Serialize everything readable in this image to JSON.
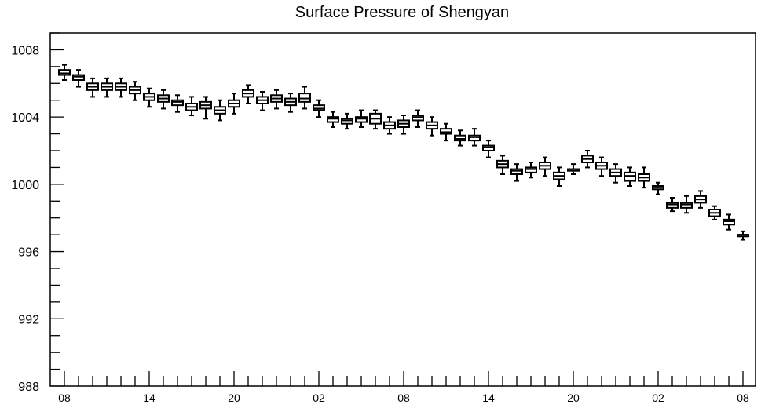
{
  "chart_data": {
    "type": "box",
    "title": "Surface Pressure of Shengyan",
    "xlabel": "",
    "ylabel": "",
    "ylim": [
      988,
      1009
    ],
    "yticks": [
      988,
      992,
      996,
      1000,
      1004,
      1008
    ],
    "ytick_labels": [
      "988",
      "992",
      "996",
      "1000",
      "1004",
      "1008"
    ],
    "x_hours_from_start": [
      0,
      6,
      12,
      18,
      24,
      30,
      36,
      42,
      48
    ],
    "xtick_labels": [
      "08",
      "14",
      "20",
      "02",
      "08",
      "14",
      "20",
      "02",
      "08"
    ],
    "grid": false,
    "legend": "none",
    "box_color": "#000000",
    "series": [
      {
        "box_low": [
          1006.5,
          1006.2,
          1005.6,
          1005.6,
          1005.6,
          1005.4,
          1005.0,
          1004.9,
          1004.7,
          1004.4,
          1004.5,
          1004.2,
          1004.6,
          1005.2,
          1004.8,
          1004.9,
          1004.7,
          1004.9,
          1004.4,
          1003.7,
          1003.6,
          1003.7,
          1003.6,
          1003.3,
          1003.4,
          1003.8,
          1003.3,
          1003.0,
          1002.6,
          1002.6,
          1002.0,
          1001.0,
          1000.6,
          1000.7,
          1000.9,
          1000.3,
          1000.8,
          1001.3,
          1000.9,
          1000.5,
          1000.2,
          1000.2,
          999.7,
          998.6,
          998.6,
          998.9,
          998.1,
          997.6,
          996.9
        ],
        "box_high": [
          1006.8,
          1006.5,
          1006.0,
          1006.0,
          1006.0,
          1005.8,
          1005.4,
          1005.3,
          1005.0,
          1004.8,
          1004.9,
          1004.6,
          1005.0,
          1005.6,
          1005.2,
          1005.3,
          1005.1,
          1005.4,
          1004.7,
          1004.0,
          1003.9,
          1004.0,
          1004.2,
          1003.7,
          1003.8,
          1004.1,
          1003.7,
          1003.3,
          1002.9,
          1002.9,
          1002.3,
          1001.4,
          1000.9,
          1001.0,
          1001.3,
          1000.7,
          1000.9,
          1001.7,
          1001.3,
          1000.9,
          1000.7,
          1000.6,
          999.9,
          998.9,
          998.9,
          999.3,
          998.5,
          997.9,
          997.0
        ],
        "median": [
          1006.6,
          1006.4,
          1005.8,
          1005.8,
          1005.8,
          1005.6,
          1005.2,
          1005.1,
          1004.9,
          1004.6,
          1004.7,
          1004.4,
          1004.8,
          1005.4,
          1005.0,
          1005.1,
          1004.9,
          1005.1,
          1004.5,
          1003.9,
          1003.8,
          1003.9,
          1003.9,
          1003.5,
          1003.6,
          1004.0,
          1003.5,
          1003.1,
          1002.7,
          1002.8,
          1002.2,
          1001.2,
          1000.8,
          1000.9,
          1001.1,
          1000.5,
          1000.9,
          1001.5,
          1001.1,
          1000.7,
          1000.5,
          1000.4,
          999.8,
          998.8,
          998.8,
          999.1,
          998.3,
          997.8,
          997.0
        ],
        "whisker_low": [
          1006.2,
          1005.8,
          1005.2,
          1005.2,
          1005.2,
          1005.0,
          1004.6,
          1004.5,
          1004.3,
          1004.1,
          1003.9,
          1003.8,
          1004.2,
          1004.8,
          1004.4,
          1004.5,
          1004.3,
          1004.5,
          1004.0,
          1003.4,
          1003.3,
          1003.4,
          1003.3,
          1003.0,
          1003.0,
          1003.4,
          1002.9,
          1002.6,
          1002.3,
          1002.3,
          1001.6,
          1000.6,
          1000.2,
          1000.4,
          1000.5,
          999.9,
          1000.6,
          1001.0,
          1000.5,
          1000.1,
          999.9,
          999.8,
          999.4,
          998.4,
          998.3,
          998.6,
          997.9,
          997.3,
          996.7
        ],
        "whisker_high": [
          1007.1,
          1006.8,
          1006.3,
          1006.3,
          1006.3,
          1006.1,
          1005.7,
          1005.6,
          1005.3,
          1005.2,
          1005.2,
          1005.0,
          1005.4,
          1005.9,
          1005.5,
          1005.6,
          1005.4,
          1005.8,
          1005.0,
          1004.3,
          1004.2,
          1004.4,
          1004.4,
          1004.0,
          1004.1,
          1004.4,
          1004.0,
          1003.6,
          1003.2,
          1003.3,
          1002.6,
          1001.7,
          1001.2,
          1001.3,
          1001.6,
          1001.0,
          1001.2,
          1002.0,
          1001.6,
          1001.2,
          1001.0,
          1001.0,
          1000.1,
          999.2,
          999.3,
          999.6,
          998.7,
          998.2,
          997.2
        ]
      }
    ]
  }
}
